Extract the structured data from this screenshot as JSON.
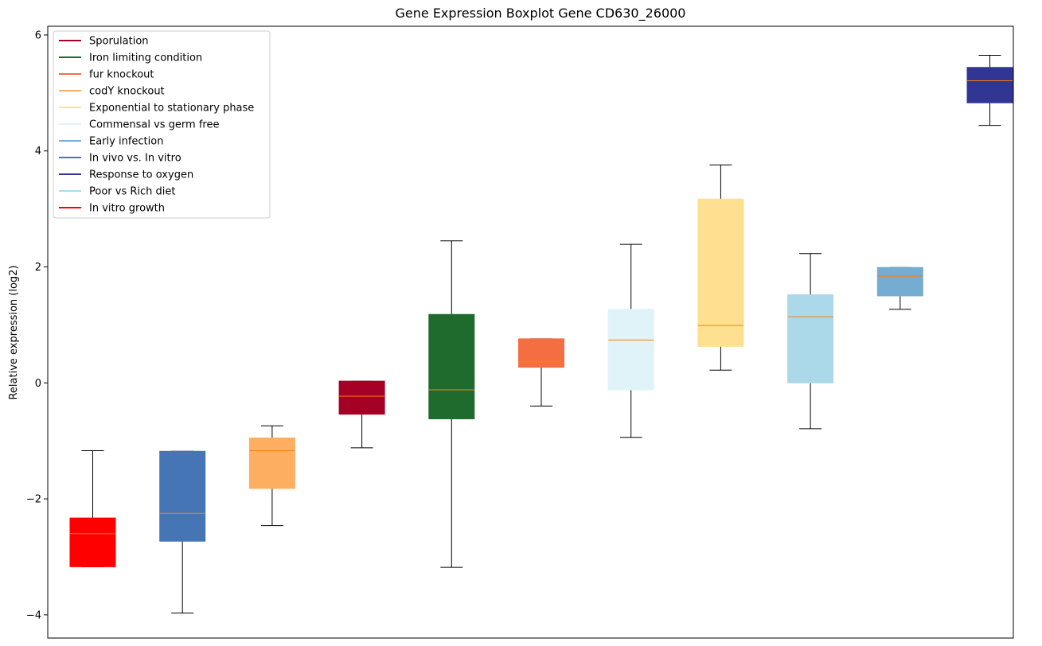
{
  "chart_data": {
    "type": "boxplot",
    "title": "Gene Expression Boxplot Gene CD630_26000",
    "xlabel": "",
    "ylabel": "Relative expression (log2)",
    "ylim": [
      -4.4,
      6.15
    ],
    "yticks": [
      -4,
      -2,
      0,
      2,
      4,
      6
    ],
    "ytick_labels": [
      "−4",
      "−2",
      "0",
      "2",
      "4",
      "6"
    ],
    "grid": false,
    "legend_position": "top-left",
    "median_color": "#ff7f0e",
    "whisker_color": "#000000",
    "legend": [
      {
        "label": "Sporulation",
        "color": "#a50026"
      },
      {
        "label": "Iron limiting condition",
        "color": "#1f6b2d"
      },
      {
        "label": "fur knockout",
        "color": "#f46d43"
      },
      {
        "label": "codY knockout",
        "color": "#fdae61"
      },
      {
        "label": "Exponential to stationary phase",
        "color": "#fee090"
      },
      {
        "label": "Commensal vs germ free",
        "color": "#e0f3f8"
      },
      {
        "label": "Early infection",
        "color": "#74add1"
      },
      {
        "label": "In vivo vs. In vitro",
        "color": "#4575b4"
      },
      {
        "label": "Response to oxygen",
        "color": "#313695"
      },
      {
        "label": "Poor vs Rich diet",
        "color": "#abd9e9"
      },
      {
        "label": "In vitro growth",
        "color": "#ff0000"
      }
    ],
    "boxes": [
      {
        "group": "In vitro growth",
        "color": "#ff0000",
        "whislo": -3.17,
        "q1": -3.17,
        "med": -2.6,
        "q3": -2.33,
        "whishi": -1.17
      },
      {
        "group": "In vivo vs. In vitro",
        "color": "#4575b4",
        "whislo": -3.97,
        "q1": -2.73,
        "med": -2.25,
        "q3": -1.18,
        "whishi": -1.18
      },
      {
        "group": "codY knockout",
        "color": "#fdae61",
        "whislo": -2.46,
        "q1": -1.82,
        "med": -1.17,
        "q3": -0.95,
        "whishi": -0.74
      },
      {
        "group": "Sporulation",
        "color": "#a50026",
        "whislo": -1.12,
        "q1": -0.54,
        "med": -0.23,
        "q3": 0.03,
        "whishi": 0.03
      },
      {
        "group": "Iron limiting condition",
        "color": "#1f6b2d",
        "whislo": -3.18,
        "q1": -0.62,
        "med": -0.12,
        "q3": 1.18,
        "whishi": 2.45
      },
      {
        "group": "fur knockout",
        "color": "#f46d43",
        "whislo": -0.4,
        "q1": 0.27,
        "med": 0.36,
        "q3": 0.76,
        "whishi": 0.76
      },
      {
        "group": "Commensal vs germ free",
        "color": "#e0f3f8",
        "whislo": -0.94,
        "q1": -0.12,
        "med": 0.74,
        "q3": 1.27,
        "whishi": 2.39
      },
      {
        "group": "Exponential to stationary phase",
        "color": "#fee090",
        "whislo": 0.22,
        "q1": 0.63,
        "med": 0.99,
        "q3": 3.17,
        "whishi": 3.76
      },
      {
        "group": "Poor vs Rich diet",
        "color": "#abd9e9",
        "whislo": -0.79,
        "q1": 0.0,
        "med": 1.14,
        "q3": 1.52,
        "whishi": 2.23
      },
      {
        "group": "Early infection",
        "color": "#74add1",
        "whislo": 1.27,
        "q1": 1.5,
        "med": 1.84,
        "q3": 1.99,
        "whishi": 1.99
      },
      {
        "group": "Response to oxygen",
        "color": "#313695",
        "whislo": 4.44,
        "q1": 4.83,
        "med": 5.21,
        "q3": 5.44,
        "whishi": 5.65
      }
    ]
  }
}
